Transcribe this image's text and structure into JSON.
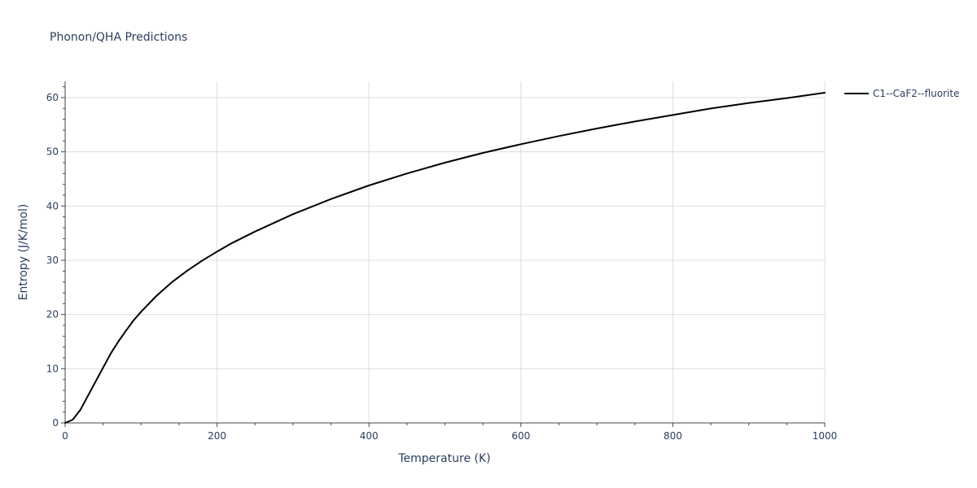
{
  "chart_data": {
    "type": "line",
    "title": "Phonon/QHA Predictions",
    "xlabel": "Temperature (K)",
    "ylabel": "Entropy (J/K/mol)",
    "xlim": [
      0,
      1000
    ],
    "ylim": [
      0,
      63
    ],
    "x_ticks": [
      0,
      200,
      400,
      600,
      800,
      1000
    ],
    "y_ticks": [
      0,
      10,
      20,
      30,
      40,
      50,
      60
    ],
    "grid": true,
    "legend_position": "top-right, outside plot",
    "series": [
      {
        "name": "C1--CaF2--fluorite",
        "color": "#000000",
        "x": [
          0,
          10,
          20,
          30,
          40,
          50,
          60,
          70,
          80,
          90,
          100,
          120,
          140,
          160,
          180,
          200,
          220,
          250,
          300,
          350,
          400,
          450,
          500,
          550,
          600,
          650,
          700,
          750,
          800,
          850,
          900,
          950,
          1000
        ],
        "y": [
          0,
          0.6,
          2.4,
          5.0,
          7.6,
          10.2,
          12.8,
          15.0,
          17.0,
          18.9,
          20.5,
          23.4,
          25.9,
          28.0,
          29.9,
          31.6,
          33.2,
          35.3,
          38.5,
          41.3,
          43.8,
          46.0,
          48.0,
          49.8,
          51.4,
          52.9,
          54.3,
          55.6,
          56.8,
          58.0,
          59.0,
          59.9,
          60.9
        ]
      }
    ]
  }
}
